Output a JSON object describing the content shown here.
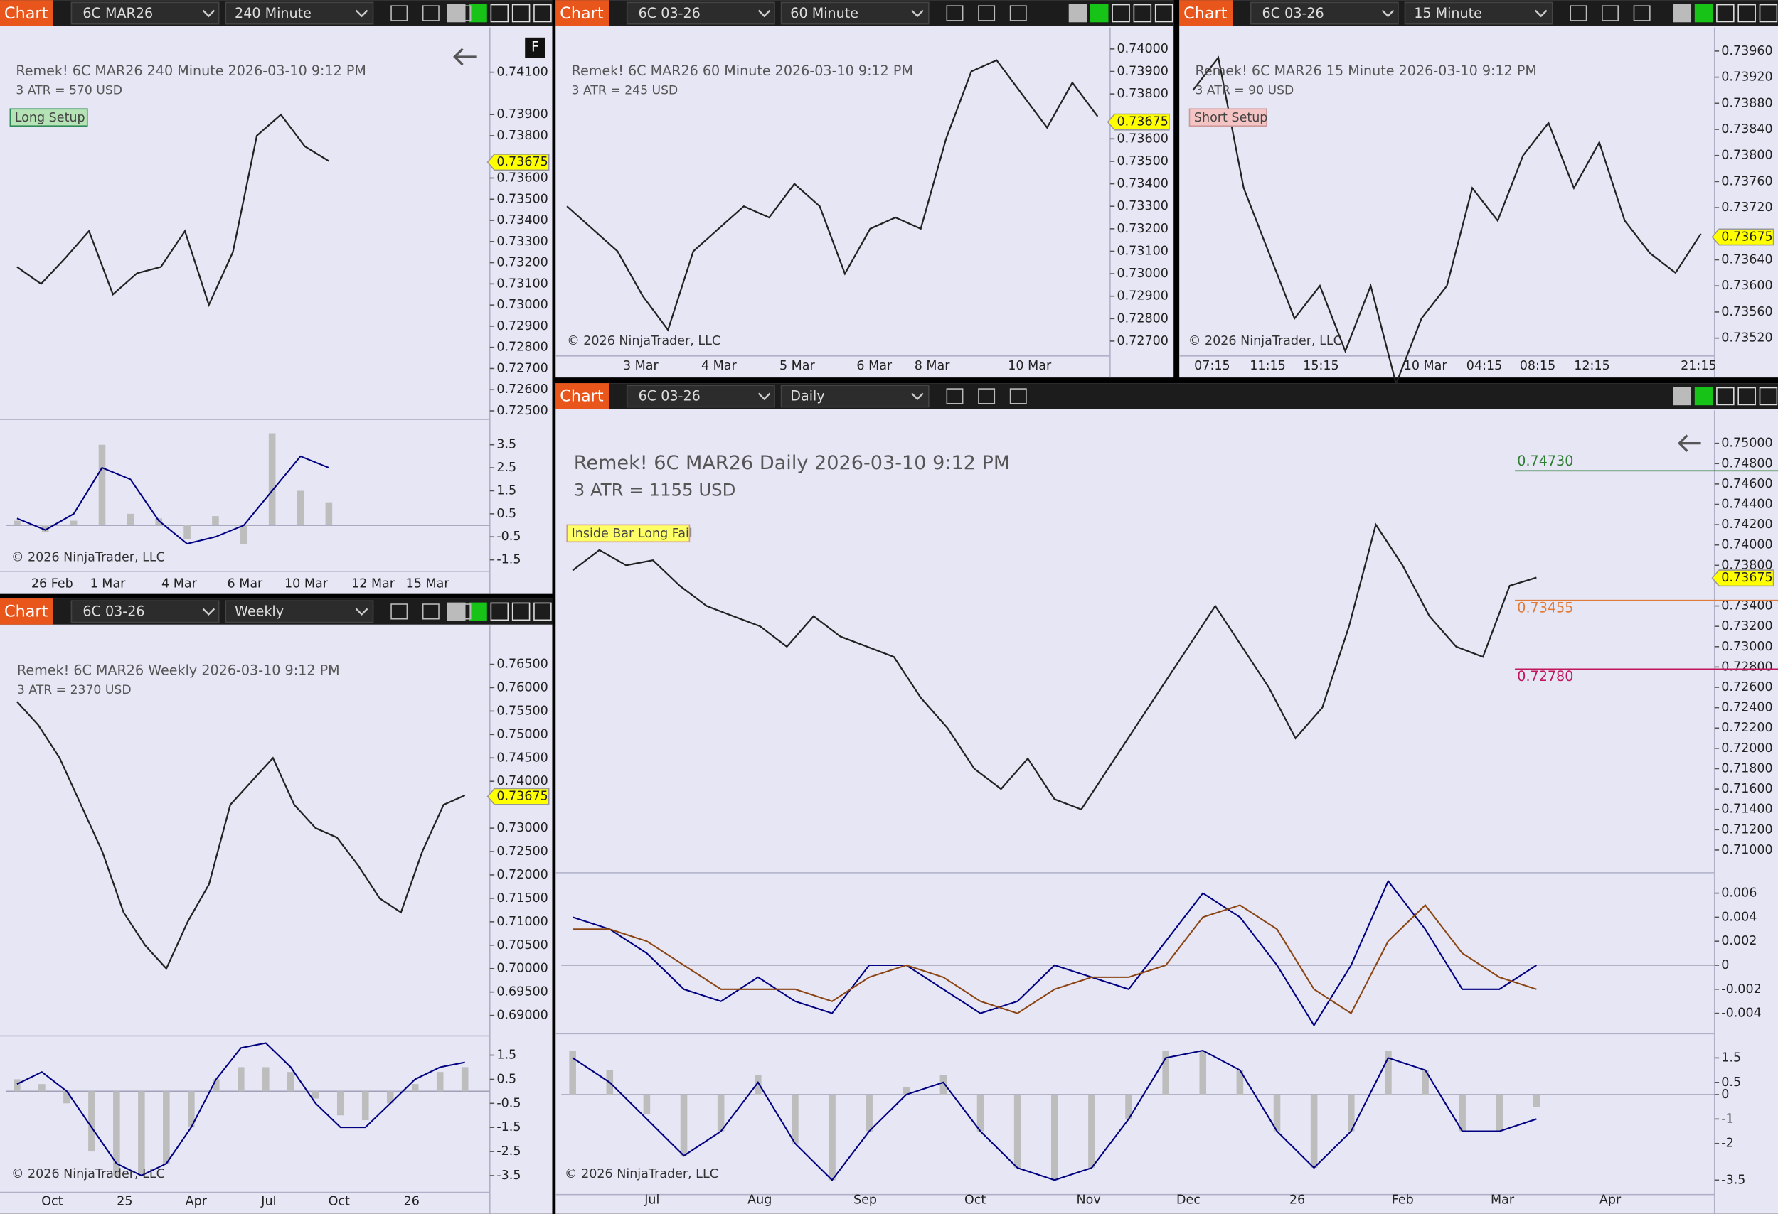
{
  "windows": [
    {
      "toolbar": {
        "label": "Chart",
        "instrument": "6C MAR26",
        "interval": "240 Minute"
      },
      "title": "Remek!  6C MAR26  240 Minute  2026-03-10 9:12 PM",
      "atr": "3 ATR = 570 USD",
      "setup": "Long Setup",
      "corner_button": "F",
      "price": {
        "ylim": [
          0.7247,
          0.7428
        ],
        "yticks": [
          {
            "value": 0.741,
            "label": "0.74100"
          },
          {
            "value": 0.739,
            "label": "0.73900"
          },
          {
            "value": 0.738,
            "label": "0.73800"
          },
          {
            "value": 0.736,
            "label": "0.73600"
          },
          {
            "value": 0.735,
            "label": "0.73500"
          },
          {
            "value": 0.734,
            "label": "0.73400"
          },
          {
            "value": 0.733,
            "label": "0.73300"
          },
          {
            "value": 0.732,
            "label": "0.73200"
          },
          {
            "value": 0.731,
            "label": "0.73100"
          },
          {
            "value": 0.73,
            "label": "0.73000"
          },
          {
            "value": 0.729,
            "label": "0.72900"
          },
          {
            "value": 0.728,
            "label": "0.72800"
          },
          {
            "value": 0.727,
            "label": "0.72700"
          },
          {
            "value": 0.726,
            "label": "0.72600"
          },
          {
            "value": 0.725,
            "label": "0.72500"
          }
        ],
        "last": {
          "value": 0.73675,
          "label": "0.73675"
        },
        "color": "#222222",
        "closes": [
          0.7318,
          0.731,
          0.7322,
          0.7335,
          0.7305,
          0.7315,
          0.7318,
          0.7335,
          0.73,
          0.7325,
          0.738,
          0.739,
          0.7375,
          0.7368
        ]
      },
      "indicators": [
        {
          "ylim": [
            -1.9,
            4.5
          ],
          "yticks": [
            3.5,
            2.5,
            1.5,
            0.5,
            -0.5,
            -1.5
          ],
          "bar_color": "#bdbdbd",
          "bars": [
            0.2,
            -0.3,
            0.2,
            3.5,
            0.5,
            0.3,
            -0.6,
            0.4,
            -0.8,
            4,
            1.5,
            1
          ],
          "lines": [
            {
              "color": "#000080",
              "values": [
                0.3,
                -0.2,
                0.5,
                2.5,
                2,
                0.2,
                -0.8,
                -0.5,
                0,
                1.5,
                3,
                2.5
              ]
            }
          ]
        }
      ],
      "time_labels": [
        "26 Feb",
        "1 Mar",
        "4 Mar",
        "6 Mar",
        "10 Mar",
        "12 Mar",
        "15 Mar"
      ],
      "copyright": "© 2026 NinjaTrader, LLC"
    },
    {
      "toolbar": {
        "label": "Chart",
        "instrument": "6C 03-26",
        "interval": "60 Minute"
      },
      "title": "Remek!  6C MAR26  60 Minute  2026-03-10 9:12 PM",
      "atr": "3 ATR = 245 USD",
      "price": {
        "ylim": [
          0.72644,
          0.74076
        ],
        "yticks": [
          {
            "value": 0.74,
            "label": "0.74000"
          },
          {
            "value": 0.739,
            "label": "0.73900"
          },
          {
            "value": 0.738,
            "label": "0.73800"
          },
          {
            "value": 0.736,
            "label": "0.73600"
          },
          {
            "value": 0.735,
            "label": "0.73500"
          },
          {
            "value": 0.734,
            "label": "0.73400"
          },
          {
            "value": 0.733,
            "label": "0.73300"
          },
          {
            "value": 0.732,
            "label": "0.73200"
          },
          {
            "value": 0.731,
            "label": "0.73100"
          },
          {
            "value": 0.73,
            "label": "0.73000"
          },
          {
            "value": 0.729,
            "label": "0.72900"
          },
          {
            "value": 0.728,
            "label": "0.72800"
          },
          {
            "value": 0.727,
            "label": "0.72700"
          }
        ],
        "last": {
          "value": 0.73675,
          "label": "0.73675"
        },
        "color": "#222222",
        "closes": [
          0.733,
          0.732,
          0.731,
          0.729,
          0.7275,
          0.731,
          0.732,
          0.733,
          0.7325,
          0.734,
          0.733,
          0.73,
          0.732,
          0.7325,
          0.732,
          0.736,
          0.739,
          0.7395,
          0.738,
          0.7365,
          0.7385,
          0.737
        ]
      },
      "time_labels": [
        "3 Mar",
        "4 Mar",
        "5 Mar",
        "6 Mar",
        "8 Mar",
        "10 Mar"
      ],
      "copyright": "© 2026 NinjaTrader, LLC"
    },
    {
      "toolbar": {
        "label": "Chart",
        "instrument": "6C 03-26",
        "interval": "15 Minute"
      },
      "title": "Remek!  6C MAR26  15 Minute  2026-03-10 9:12 PM",
      "atr": "3 ATR = 90 USD",
      "setup": "Short Setup",
      "price": {
        "ylim": [
          0.73496,
          0.73986
        ],
        "yticks": [
          {
            "value": 0.7396,
            "label": "0.73960"
          },
          {
            "value": 0.7392,
            "label": "0.73920"
          },
          {
            "value": 0.7388,
            "label": "0.73880"
          },
          {
            "value": 0.7384,
            "label": "0.73840"
          },
          {
            "value": 0.738,
            "label": "0.73800"
          },
          {
            "value": 0.7376,
            "label": "0.73760"
          },
          {
            "value": 0.7372,
            "label": "0.73720"
          },
          {
            "value": 0.7364,
            "label": "0.73640"
          },
          {
            "value": 0.736,
            "label": "0.73600"
          },
          {
            "value": 0.7356,
            "label": "0.73560"
          },
          {
            "value": 0.7352,
            "label": "0.73520"
          }
        ],
        "last": {
          "value": 0.73675,
          "label": "0.73675"
        },
        "color": "#222222",
        "closes": [
          0.739,
          0.7395,
          0.7375,
          0.7365,
          0.7355,
          0.736,
          0.735,
          0.736,
          0.7345,
          0.7355,
          0.736,
          0.7375,
          0.737,
          0.738,
          0.7385,
          0.7375,
          0.7382,
          0.737,
          0.7365,
          0.7362,
          0.7368
        ]
      },
      "time_labels": [
        "07:15",
        "11:15",
        "15:15",
        "10 Mar",
        "04:15",
        "08:15",
        "12:15",
        "21:15"
      ],
      "copyright": "© 2026 NinjaTrader, LLC"
    },
    {
      "toolbar": {
        "label": "Chart",
        "instrument": "6C 03-26",
        "interval": "Weekly"
      },
      "title": "Remek!  6C MAR26  Weekly  2026-03-10 9:12 PM",
      "atr": "3 ATR = 2370 USD",
      "price": {
        "ylim": [
          0.6861,
          0.7713
        ],
        "yticks": [
          {
            "value": 0.765,
            "label": "0.76500"
          },
          {
            "value": 0.76,
            "label": "0.76000"
          },
          {
            "value": 0.755,
            "label": "0.75500"
          },
          {
            "value": 0.75,
            "label": "0.75000"
          },
          {
            "value": 0.745,
            "label": "0.74500"
          },
          {
            "value": 0.74,
            "label": "0.74000"
          },
          {
            "value": 0.73,
            "label": "0.73000"
          },
          {
            "value": 0.725,
            "label": "0.72500"
          },
          {
            "value": 0.72,
            "label": "0.72000"
          },
          {
            "value": 0.715,
            "label": "0.71500"
          },
          {
            "value": 0.71,
            "label": "0.71000"
          },
          {
            "value": 0.705,
            "label": "0.70500"
          },
          {
            "value": 0.7,
            "label": "0.70000"
          },
          {
            "value": 0.695,
            "label": "0.69500"
          },
          {
            "value": 0.69,
            "label": "0.69000"
          }
        ],
        "last": {
          "value": 0.73675,
          "label": "0.73675"
        },
        "color": "#222222",
        "closes": [
          0.757,
          0.752,
          0.745,
          0.735,
          0.725,
          0.712,
          0.705,
          0.7,
          0.71,
          0.718,
          0.735,
          0.74,
          0.745,
          0.735,
          0.73,
          0.728,
          0.722,
          0.715,
          0.712,
          0.725,
          0.735,
          0.737
        ]
      },
      "indicators": [
        {
          "ylim": [
            -4.1,
            2.25
          ],
          "yticks": [
            1.5,
            0.5,
            -0.5,
            -1.5,
            -2.5,
            -3.5
          ],
          "bar_color": "#bdbdbd",
          "bars": [
            0.5,
            0.3,
            -0.5,
            -2.5,
            -3.5,
            -3.5,
            -3,
            -1.5,
            0.5,
            1,
            1,
            0.8,
            -0.3,
            -1,
            -1.2,
            -0.5,
            0.3,
            0.8,
            1
          ],
          "lines": [
            {
              "color": "#000080",
              "values": [
                0.3,
                0.8,
                0,
                -1.5,
                -3,
                -3.5,
                -3,
                -1.5,
                0.5,
                1.8,
                2,
                1,
                -0.5,
                -1.5,
                -1.5,
                -0.5,
                0.5,
                1,
                1.2
              ]
            }
          ]
        }
      ],
      "time_labels": [
        "Oct",
        "25",
        "Apr",
        "Jul",
        "Oct",
        "26"
      ],
      "copyright": "© 2026 NinjaTrader, LLC"
    },
    {
      "toolbar": {
        "label": "Chart",
        "instrument": "6C 03-26",
        "interval": "Daily"
      },
      "title": "Remek!  6C MAR26  Daily  2026-03-10 9:12 PM",
      "atr": "3 ATR = 1155 USD",
      "setup": "Inside Bar Long Fail",
      "price": {
        "ylim": [
          0.70799,
          0.75212
        ],
        "yticks": [
          {
            "value": 0.75,
            "label": "0.75000"
          },
          {
            "value": 0.748,
            "label": "0.74800"
          },
          {
            "value": 0.746,
            "label": "0.74600"
          },
          {
            "value": 0.744,
            "label": "0.74400"
          },
          {
            "value": 0.742,
            "label": "0.74200"
          },
          {
            "value": 0.74,
            "label": "0.74000"
          },
          {
            "value": 0.738,
            "label": "0.73800"
          },
          {
            "value": 0.734,
            "label": "0.73400"
          },
          {
            "value": 0.732,
            "label": "0.73200"
          },
          {
            "value": 0.73,
            "label": "0.73000"
          },
          {
            "value": 0.728,
            "label": "0.72800"
          },
          {
            "value": 0.726,
            "label": "0.72600"
          },
          {
            "value": 0.724,
            "label": "0.72400"
          },
          {
            "value": 0.722,
            "label": "0.72200"
          },
          {
            "value": 0.72,
            "label": "0.72000"
          },
          {
            "value": 0.718,
            "label": "0.71800"
          },
          {
            "value": 0.716,
            "label": "0.71600"
          },
          {
            "value": 0.714,
            "label": "0.71400"
          },
          {
            "value": 0.712,
            "label": "0.71200"
          },
          {
            "value": 0.71,
            "label": "0.71000"
          }
        ],
        "last": {
          "value": 0.73675,
          "label": "0.73675"
        },
        "color": "#222222",
        "levels": [
          {
            "value": 0.7473,
            "label": "0.74730",
            "color": "#2e7d32"
          },
          {
            "value": 0.7278,
            "label": "0.72780",
            "color": "#c2185b"
          },
          {
            "value": 0.73455,
            "label": "0.73455",
            "color": "#e07b39"
          }
        ],
        "closes": [
          0.7375,
          0.7395,
          0.738,
          0.7385,
          0.736,
          0.734,
          0.733,
          0.732,
          0.73,
          0.733,
          0.731,
          0.73,
          0.729,
          0.725,
          0.722,
          0.718,
          0.716,
          0.719,
          0.715,
          0.714,
          0.718,
          0.722,
          0.726,
          0.73,
          0.734,
          0.73,
          0.726,
          0.721,
          0.724,
          0.732,
          0.742,
          0.738,
          0.733,
          0.73,
          0.729,
          0.736,
          0.7368
        ]
      },
      "indicators": [
        {
          "ylim": [
            -0.00551,
            0.00751
          ],
          "yticks": [
            0.006,
            0.004,
            0.002,
            0,
            -0.002,
            -0.004
          ],
          "lines": [
            {
              "color": "#000080",
              "values": [
                0.004,
                0.003,
                0.001,
                -0.002,
                -0.003,
                -0.001,
                -0.003,
                -0.004,
                0,
                0,
                -0.002,
                -0.004,
                -0.003,
                0,
                -0.001,
                -0.002,
                0.002,
                0.006,
                0.004,
                0,
                -0.005,
                0,
                0.007,
                0.003,
                -0.002,
                -0.002,
                0
              ]
            },
            {
              "color": "#8b4513",
              "values": [
                0.003,
                0.003,
                0.002,
                0,
                -0.002,
                -0.002,
                -0.002,
                -0.003,
                -0.001,
                0,
                -0.001,
                -0.003,
                -0.004,
                -0.002,
                -0.001,
                -0.001,
                0,
                0.004,
                0.005,
                0.003,
                -0.002,
                -0.004,
                0.002,
                0.005,
                0.001,
                -0.001,
                -0.002
              ]
            }
          ]
        },
        {
          "ylim": [
            -4,
            2.4
          ],
          "yticks": [
            1.5,
            0.5,
            0,
            -1,
            -2,
            -3.5
          ],
          "bar_color": "#bdbdbd",
          "bars": [
            1.8,
            1,
            -0.8,
            -2.5,
            -1.5,
            0.8,
            -2,
            -3.5,
            -1.5,
            0.3,
            0.8,
            -1.5,
            -3,
            -3.5,
            -3,
            -1,
            1.8,
            1.8,
            1,
            -1.5,
            -3,
            -1.5,
            1.8,
            1,
            -1.5,
            -1.5,
            -0.5
          ],
          "lines": [
            {
              "color": "#000080",
              "values": [
                1.5,
                0.5,
                -1,
                -2.5,
                -1.5,
                0.5,
                -2,
                -3.5,
                -1.5,
                0,
                0.5,
                -1.5,
                -3,
                -3.5,
                -3,
                -1,
                1.5,
                1.8,
                1,
                -1.5,
                -3,
                -1.5,
                1.5,
                1,
                -1.5,
                -1.5,
                -1
              ]
            }
          ]
        }
      ],
      "time_labels": [
        "Jul",
        "Aug",
        "Sep",
        "Oct",
        "Nov",
        "Dec",
        "26",
        "Feb",
        "Mar",
        "Apr"
      ],
      "copyright": "© 2026 NinjaTrader, LLC"
    }
  ]
}
